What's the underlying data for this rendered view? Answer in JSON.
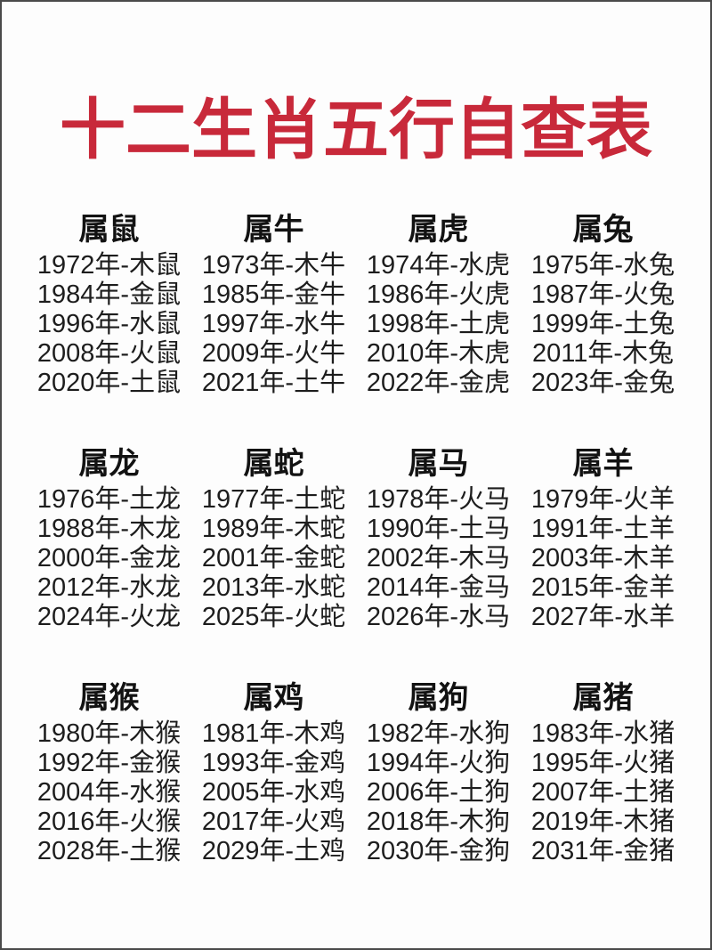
{
  "page": {
    "title": "十二生肖五行自查表",
    "title_color": "#c8293a",
    "text_color": "#1d1d1d",
    "background_color": "#fdfdfd"
  },
  "groups": [
    {
      "name": "属鼠",
      "entries": [
        "1972年-木鼠",
        "1984年-金鼠",
        "1996年-水鼠",
        "2008年-火鼠",
        "2020年-土鼠"
      ]
    },
    {
      "name": "属牛",
      "entries": [
        "1973年-木牛",
        "1985年-金牛",
        "1997年-水牛",
        "2009年-火牛",
        "2021年-土牛"
      ]
    },
    {
      "name": "属虎",
      "entries": [
        "1974年-水虎",
        "1986年-火虎",
        "1998年-土虎",
        "2010年-木虎",
        "2022年-金虎"
      ]
    },
    {
      "name": "属兔",
      "entries": [
        "1975年-水兔",
        "1987年-火兔",
        "1999年-土兔",
        "2011年-木兔",
        "2023年-金兔"
      ]
    },
    {
      "name": "属龙",
      "entries": [
        "1976年-土龙",
        "1988年-木龙",
        "2000年-金龙",
        "2012年-水龙",
        "2024年-火龙"
      ]
    },
    {
      "name": "属蛇",
      "entries": [
        "1977年-土蛇",
        "1989年-木蛇",
        "2001年-金蛇",
        "2013年-水蛇",
        "2025年-火蛇"
      ]
    },
    {
      "name": "属马",
      "entries": [
        "1978年-火马",
        "1990年-土马",
        "2002年-木马",
        "2014年-金马",
        "2026年-水马"
      ]
    },
    {
      "name": "属羊",
      "entries": [
        "1979年-火羊",
        "1991年-土羊",
        "2003年-木羊",
        "2015年-金羊",
        "2027年-水羊"
      ]
    },
    {
      "name": "属猴",
      "entries": [
        "1980年-木猴",
        "1992年-金猴",
        "2004年-水猴",
        "2016年-火猴",
        "2028年-土猴"
      ]
    },
    {
      "name": "属鸡",
      "entries": [
        "1981年-木鸡",
        "1993年-金鸡",
        "2005年-水鸡",
        "2017年-火鸡",
        "2029年-土鸡"
      ]
    },
    {
      "name": "属狗",
      "entries": [
        "1982年-水狗",
        "1994年-火狗",
        "2006年-土狗",
        "2018年-木狗",
        "2030年-金狗"
      ]
    },
    {
      "name": "属猪",
      "entries": [
        "1983年-水猪",
        "1995年-火猪",
        "2007年-土猪",
        "2019年-木猪",
        "2031年-金猪"
      ]
    }
  ]
}
